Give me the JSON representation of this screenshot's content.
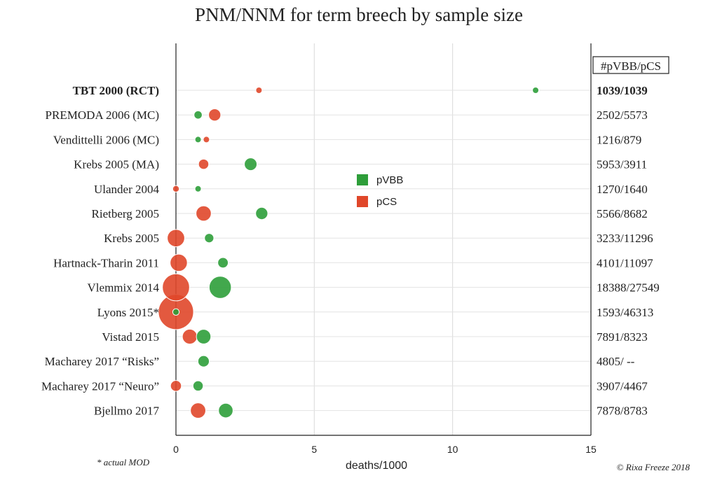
{
  "chart_data": {
    "type": "scatter",
    "title": "PNM/NNM for term breech by sample size",
    "xlabel": "deaths/1000",
    "xlim": [
      0,
      15
    ],
    "xticks": [
      0,
      5,
      10,
      15
    ],
    "grid": true,
    "legend_position": "center",
    "right_header": "#pVBB/pCS",
    "footnote": "* actual MOD",
    "credit": "© Rixa Freeze 2018",
    "categories": [
      "TBT 2000 (RCT)",
      "PREMODA 2006 (MC)",
      "Vendittelli 2006 (MC)",
      "Krebs 2005 (MA)",
      "Ulander 2004",
      "Rietberg 2005",
      "Krebs 2005",
      "Hartnack-Tharin 2011",
      "Vlemmix 2014",
      "Lyons 2015*",
      "Vistad 2015",
      "Macharey 2017 “Risks”",
      "Macharey 2017 “Neuro”",
      "Bjellmo 2017"
    ],
    "bold_categories": [
      "TBT 2000 (RCT)"
    ],
    "sample_sizes": [
      "1039/1039",
      "2502/5573",
      "1216/879",
      "5953/3911",
      "1270/1640",
      "5566/8682",
      "3233/11296",
      "4101/11097",
      "18388/27549",
      "1593/46313",
      "7891/8323",
      "4805/ --",
      "3907/4467",
      "7878/8783"
    ],
    "series": [
      {
        "name": "pCS",
        "color": "#e0472a",
        "points": [
          {
            "row": 0,
            "x": 3.0,
            "n": 1039
          },
          {
            "row": 1,
            "x": 1.4,
            "n": 5573
          },
          {
            "row": 2,
            "x": 1.1,
            "n": 879
          },
          {
            "row": 3,
            "x": 1.0,
            "n": 3911
          },
          {
            "row": 4,
            "x": 0.0,
            "n": 1640
          },
          {
            "row": 5,
            "x": 1.0,
            "n": 8682
          },
          {
            "row": 6,
            "x": 0.0,
            "n": 11296
          },
          {
            "row": 7,
            "x": 0.1,
            "n": 11097
          },
          {
            "row": 8,
            "x": 0.0,
            "n": 27549
          },
          {
            "row": 9,
            "x": 0.0,
            "n": 46313
          },
          {
            "row": 10,
            "x": 0.5,
            "n": 8323
          },
          {
            "row": 12,
            "x": 0.0,
            "n": 4467
          },
          {
            "row": 13,
            "x": 0.8,
            "n": 8783
          }
        ]
      },
      {
        "name": "pVBB",
        "color": "#2e9e3a",
        "points": [
          {
            "row": 0,
            "x": 13.0,
            "n": 1039
          },
          {
            "row": 1,
            "x": 0.8,
            "n": 2502
          },
          {
            "row": 2,
            "x": 0.8,
            "n": 1216
          },
          {
            "row": 3,
            "x": 2.7,
            "n": 5953
          },
          {
            "row": 4,
            "x": 0.8,
            "n": 1270
          },
          {
            "row": 5,
            "x": 3.1,
            "n": 5566
          },
          {
            "row": 6,
            "x": 1.2,
            "n": 3233
          },
          {
            "row": 7,
            "x": 1.7,
            "n": 4101
          },
          {
            "row": 8,
            "x": 1.6,
            "n": 18388
          },
          {
            "row": 9,
            "x": 0.0,
            "n": 1593
          },
          {
            "row": 10,
            "x": 1.0,
            "n": 7891
          },
          {
            "row": 11,
            "x": 1.0,
            "n": 4805
          },
          {
            "row": 12,
            "x": 0.8,
            "n": 3907
          },
          {
            "row": 13,
            "x": 1.8,
            "n": 7878
          }
        ]
      }
    ]
  }
}
